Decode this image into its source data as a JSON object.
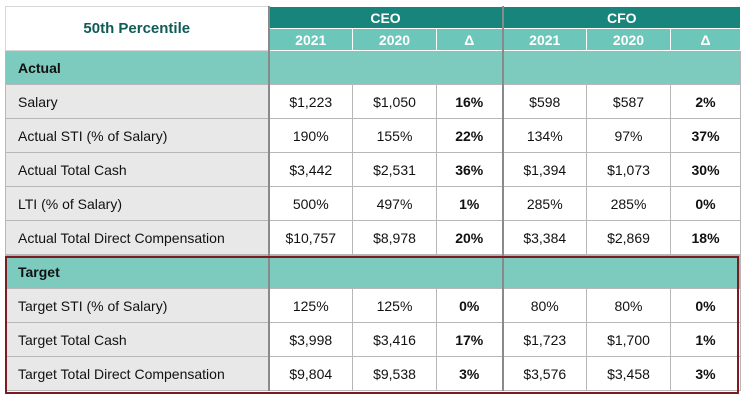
{
  "header": {
    "corner_label": "50th Percentile",
    "groups": [
      "CEO",
      "CFO"
    ],
    "columns": [
      "2021",
      "2020",
      "Δ",
      "2021",
      "2020",
      "Δ"
    ]
  },
  "sections": [
    {
      "title": "Actual",
      "rows": [
        {
          "label": "Salary",
          "cells": [
            "$1,223",
            "$1,050",
            "16%",
            "$598",
            "$587",
            "2%"
          ]
        },
        {
          "label": "Actual STI (% of Salary)",
          "cells": [
            "190%",
            "155%",
            "22%",
            "134%",
            "97%",
            "37%"
          ]
        },
        {
          "label": "Actual Total Cash",
          "cells": [
            "$3,442",
            "$2,531",
            "36%",
            "$1,394",
            "$1,073",
            "30%"
          ]
        },
        {
          "label": "LTI (% of Salary)",
          "cells": [
            "500%",
            "497%",
            "1%",
            "285%",
            "285%",
            "0%"
          ]
        },
        {
          "label": "Actual Total Direct Compensation",
          "cells": [
            "$10,757",
            "$8,978",
            "20%",
            "$3,384",
            "$2,869",
            "18%"
          ]
        }
      ]
    },
    {
      "title": "Target",
      "rows": [
        {
          "label": "Target STI (% of Salary)",
          "cells": [
            "125%",
            "125%",
            "0%",
            "80%",
            "80%",
            "0%"
          ]
        },
        {
          "label": "Target Total Cash",
          "cells": [
            "$3,998",
            "$3,416",
            "17%",
            "$1,723",
            "$1,700",
            "1%"
          ]
        },
        {
          "label": "Target Total Direct Compensation",
          "cells": [
            "$9,804",
            "$9,538",
            "3%",
            "$3,576",
            "$3,458",
            "3%"
          ]
        }
      ]
    }
  ],
  "colors": {
    "header_dark": "#17857c",
    "header_light": "#6cc6ba",
    "section_fill": "#7dcbbf",
    "label_fill": "#e8e8e8",
    "target_border": "#7a1d22"
  }
}
